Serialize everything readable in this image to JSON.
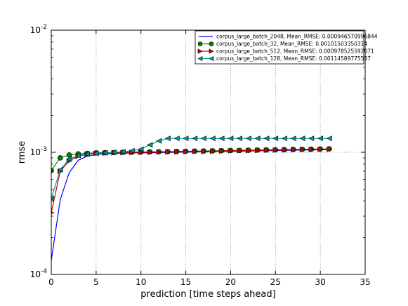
{
  "chart_data": {
    "type": "line",
    "xlabel": "prediction [time steps ahead]",
    "ylabel": "rmse",
    "xlim": [
      0,
      35
    ],
    "ylim": [
      0.0001,
      0.01
    ],
    "yscale": "log",
    "xticks": [
      0,
      5,
      10,
      15,
      20,
      25,
      30,
      35
    ],
    "xtick_labels": [
      "0",
      "5",
      "10",
      "15",
      "20",
      "25",
      "30",
      "35"
    ],
    "yticks": [
      0.0001,
      0.001,
      0.01
    ],
    "ytick_labels": [
      {
        "base": "10",
        "exp": "-4"
      },
      {
        "base": "10",
        "exp": "-3"
      },
      {
        "base": "10",
        "exp": "-2"
      }
    ],
    "grid": "dotted",
    "legend_position": "top-right",
    "x": [
      0,
      1,
      2,
      3,
      4,
      5,
      6,
      7,
      8,
      9,
      10,
      11,
      12,
      13,
      14,
      15,
      16,
      17,
      18,
      19,
      20,
      21,
      22,
      23,
      24,
      25,
      26,
      27,
      28,
      29,
      30,
      31
    ],
    "series": [
      {
        "name": "corpus_large_batch_2048, Mean_RMSE: 0.000946570996844",
        "color": "#0000ff",
        "marker": "none",
        "values": [
          0.00013,
          0.00041,
          0.00068,
          0.00086,
          0.00093,
          0.00096,
          0.00097,
          0.00098,
          0.00098,
          0.00099,
          0.00099,
          0.000992,
          0.000995,
          0.000998,
          0.001,
          0.001003,
          0.001006,
          0.00101,
          0.001013,
          0.001016,
          0.001019,
          0.001022,
          0.001025,
          0.001028,
          0.001031,
          0.001034,
          0.001037,
          0.00104,
          0.001043,
          0.001046,
          0.001049,
          0.00105
        ]
      },
      {
        "name": "corpus_large_batch_32, Mean_RMSE: 0.00101503350314",
        "color": "#008000",
        "marker": "circle",
        "values": [
          0.00071,
          0.0009,
          0.00095,
          0.00097,
          0.00098,
          0.00099,
          0.000993,
          0.000996,
          0.001,
          0.001003,
          0.001005,
          0.001008,
          0.00101,
          0.001013,
          0.001016,
          0.001019,
          0.001022,
          0.001025,
          0.001028,
          0.001031,
          0.001034,
          0.001037,
          0.00104,
          0.001043,
          0.001046,
          0.001049,
          0.001052,
          0.001055,
          0.001058,
          0.001061,
          0.001064,
          0.001067
        ]
      },
      {
        "name": "corpus_large_batch_512, Mean_RMSE: 0.000978525592071",
        "color": "#cc0000",
        "marker": "triangle-right",
        "values": [
          0.00032,
          0.0007,
          0.00085,
          0.00093,
          0.00096,
          0.00098,
          0.000985,
          0.00099,
          0.000993,
          0.000996,
          0.000999,
          0.001001,
          0.001004,
          0.001007,
          0.00101,
          0.001013,
          0.001016,
          0.001019,
          0.001022,
          0.001025,
          0.001028,
          0.001031,
          0.001034,
          0.001037,
          0.00104,
          0.001043,
          0.001046,
          0.001049,
          0.001052,
          0.001055,
          0.001058,
          0.00106
        ]
      },
      {
        "name": "corpus_large_batch_128, Mean_RMSE: 0.00114589775537",
        "color": "#009999",
        "marker": "triangle-left",
        "values": [
          0.00042,
          0.00072,
          0.00088,
          0.00094,
          0.00097,
          0.00098,
          0.00099,
          0.001,
          0.00101,
          0.00103,
          0.00106,
          0.00115,
          0.00124,
          0.0013,
          0.0013,
          0.0013,
          0.0013,
          0.0013,
          0.0013,
          0.0013,
          0.0013,
          0.0013,
          0.0013,
          0.0013,
          0.0013,
          0.0013,
          0.0013,
          0.0013,
          0.0013,
          0.0013,
          0.0013,
          0.0013
        ]
      }
    ]
  }
}
